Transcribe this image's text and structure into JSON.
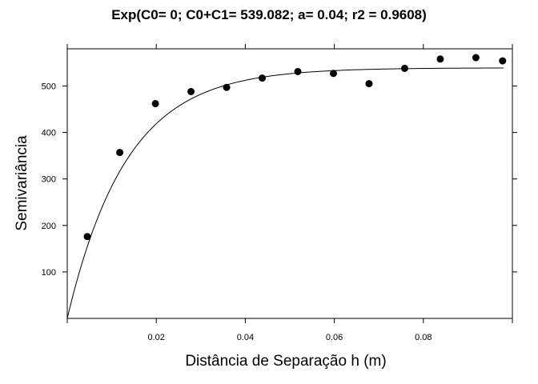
{
  "chart_data": {
    "type": "scatter",
    "title": "Exp(C0= 0; C0+C1= 539.082; a= 0.04; r2 = 0.9608)",
    "xlabel": "Distância de Separação h (m)",
    "ylabel": "Semivariância",
    "xlim": [
      0,
      0.1
    ],
    "ylim": [
      0,
      580
    ],
    "x_ticks": [
      0.02,
      0.04,
      0.06,
      0.08
    ],
    "x_tick_labels": [
      "0.02",
      "0.04",
      "0.06",
      "0.08"
    ],
    "y_ticks": [
      100,
      200,
      300,
      400,
      500
    ],
    "y_tick_labels": [
      "100",
      "200",
      "300",
      "400",
      "500"
    ],
    "grid": false,
    "points": {
      "x": [
        0.0045,
        0.0118,
        0.0198,
        0.0278,
        0.0358,
        0.0438,
        0.0518,
        0.0598,
        0.0678,
        0.0758,
        0.0838,
        0.0918,
        0.0978
      ],
      "y": [
        176,
        357,
        462,
        488,
        497,
        517,
        531,
        527,
        505,
        538,
        558,
        561,
        554
      ]
    },
    "model_curve": {
      "model": "exponential",
      "nugget": 0,
      "sill": 539.082,
      "range": 0.04,
      "x_start": 0,
      "x_end": 0.098
    },
    "colors": {
      "points": "#000000",
      "line": "#000000",
      "axes": "#000000"
    }
  }
}
